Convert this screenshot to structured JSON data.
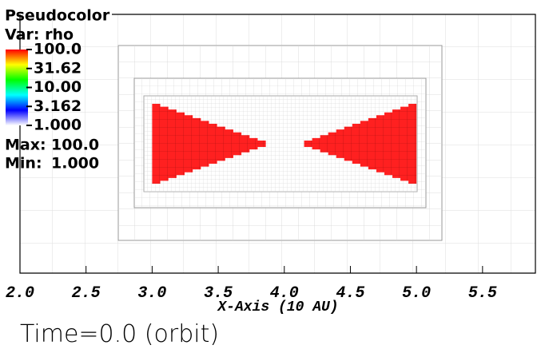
{
  "chart_data": {
    "type": "pseudocolor",
    "legend": {
      "title": "Pseudocolor",
      "variable": "Var: rho",
      "scale": "log",
      "colormap": [
        "#ff0000",
        "#ffff00",
        "#00ff00",
        "#00ffff",
        "#0000ff",
        "#ffffff"
      ],
      "ticks": [
        {
          "value": 100,
          "label": "100.0"
        },
        31.62,
        {
          "value": 10,
          "label": "10.00"
        },
        3.162,
        {
          "value": 1,
          "label": "1.000"
        }
      ],
      "max_label": "Max:",
      "max": {
        "value": 100,
        "label": "100.0"
      },
      "min_label": "Min:",
      "min": {
        "value": 1,
        "label": "1.000"
      }
    },
    "regions": [
      {
        "x": [
          3.0,
          3.86
        ],
        "value": 100
      },
      {
        "x": [
          4.15,
          5.0
        ],
        "value": 100
      }
    ],
    "color": "#ff2020",
    "xlim": [
      2.0,
      5.9
    ],
    "xticks": [
      {
        "value": 2,
        "label": "2.0"
      },
      2.5,
      {
        "value": 3,
        "label": "3.0"
      },
      3.5,
      {
        "value": 4,
        "label": "4.0"
      },
      4.5,
      {
        "value": 5,
        "label": "5.0"
      },
      5.5
    ],
    "xlabel": "X-Axis (10 AU)",
    "time": "Time=0.0 (orbit)"
  }
}
